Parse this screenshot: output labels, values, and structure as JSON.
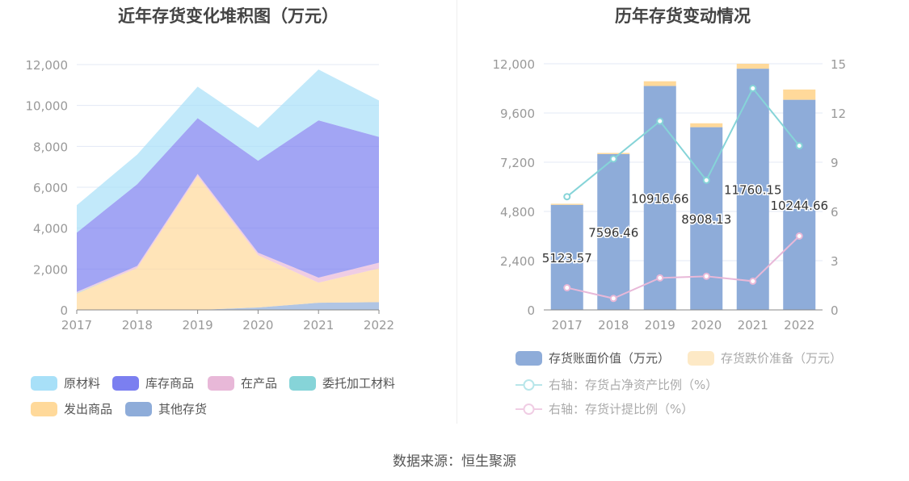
{
  "source": "数据来源：恒生聚源",
  "chart_data": [
    {
      "type": "area",
      "stacked": true,
      "title": "近年存货变化堆积图（万元）",
      "categories": [
        "2017",
        "2018",
        "2019",
        "2020",
        "2021",
        "2022"
      ],
      "ylim": [
        0,
        12000
      ],
      "yticks": [
        "0",
        "2,000",
        "4,000",
        "6,000",
        "8,000",
        "10,000",
        "12,000"
      ],
      "grid": true,
      "legend_position": "bottom",
      "series": [
        {
          "name": "其他存货",
          "color": "#8eacd9",
          "values": [
            0,
            0,
            0,
            120,
            350,
            380
          ]
        },
        {
          "name": "发出商品",
          "color": "#ffd99a",
          "values": [
            800,
            2050,
            6550,
            2560,
            980,
            1650
          ]
        },
        {
          "name": "委托加工材料",
          "color": "#86d4d8",
          "values": [
            30,
            0,
            0,
            0,
            0,
            0
          ]
        },
        {
          "name": "在产品",
          "color": "#e8b8d8",
          "values": [
            50,
            100,
            100,
            120,
            250,
            280
          ]
        },
        {
          "name": "库存商品",
          "color": "#7b7ff0",
          "values": [
            2900,
            4000,
            2730,
            4500,
            7690,
            6150
          ]
        },
        {
          "name": "原材料",
          "color": "#a8e0f8",
          "values": [
            1340,
            1450,
            1540,
            1610,
            2490,
            1785
          ]
        }
      ],
      "legend_order": [
        "原材料",
        "库存商品",
        "在产品",
        "委托加工材料",
        "发出商品",
        "其他存货"
      ]
    },
    {
      "type": "bar+line",
      "title": "历年存货变动情况",
      "categories": [
        "2017",
        "2018",
        "2019",
        "2020",
        "2021",
        "2022"
      ],
      "ylim": [
        0,
        12000
      ],
      "yticks": [
        "0",
        "2,400",
        "4,800",
        "7,200",
        "9,600",
        "12,000"
      ],
      "y2lim": [
        0,
        15
      ],
      "y2ticks": [
        "0",
        "3",
        "6",
        "9",
        "12",
        "15"
      ],
      "grid": true,
      "legend_position": "bottom",
      "bars": [
        {
          "name": "存货账面价值（万元）",
          "color": "#8eacd9",
          "values": [
            5123.57,
            7596.46,
            10916.66,
            8908.13,
            11760.15,
            10244.66
          ],
          "labels": [
            "5123.57",
            "7596.46",
            "10916.66",
            "8908.13",
            "11760.15",
            "10244.66"
          ]
        },
        {
          "name": "存货跌价准备（万元）",
          "color": "#ffd99a",
          "values": [
            50,
            55,
            230,
            190,
            240,
            500
          ]
        }
      ],
      "lines": [
        {
          "name": "右轴：存货占净资产比例（%）",
          "color": "#86d4d8",
          "values": [
            6.9,
            9.2,
            11.5,
            7.9,
            13.5,
            10.0
          ]
        },
        {
          "name": "右轴：存货计提比例（%）",
          "color": "#e8b8d8",
          "values": [
            1.35,
            0.7,
            1.95,
            2.05,
            1.75,
            4.5
          ]
        }
      ]
    }
  ]
}
